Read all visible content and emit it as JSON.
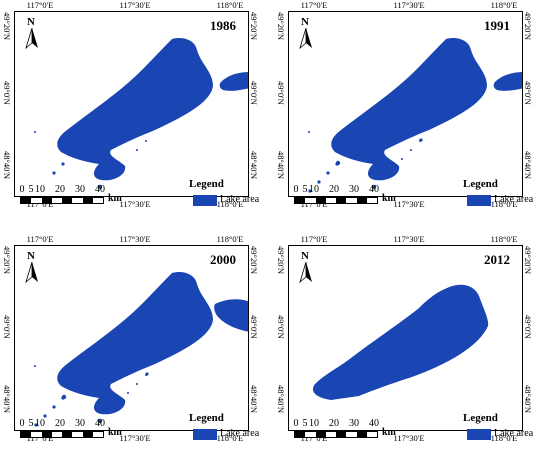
{
  "figure": {
    "colors": {
      "lake": "#1a46b4",
      "frame": "#000000",
      "background": "#ffffff"
    },
    "x_ticks": [
      "117°0'E",
      "117°30'E",
      "118°0'E"
    ],
    "y_ticks": [
      "49°20'N",
      "49°0'N",
      "48°40'N"
    ],
    "north_arrow": {
      "label": "N",
      "icon": "north-arrow-icon"
    },
    "scale_bar": {
      "ticks": [
        "0",
        "5",
        "10",
        "20",
        "30",
        "40"
      ],
      "unit": "km"
    },
    "legend": {
      "title": "Legend",
      "label": "Lake area"
    },
    "panels": [
      {
        "year": "1986",
        "east_water": true,
        "fragments": "moderate"
      },
      {
        "year": "1991",
        "east_water": true,
        "fragments": "many"
      },
      {
        "year": "2000",
        "east_water": true,
        "fragments": "many"
      },
      {
        "year": "2012",
        "east_water": false,
        "fragments": "none"
      }
    ]
  }
}
